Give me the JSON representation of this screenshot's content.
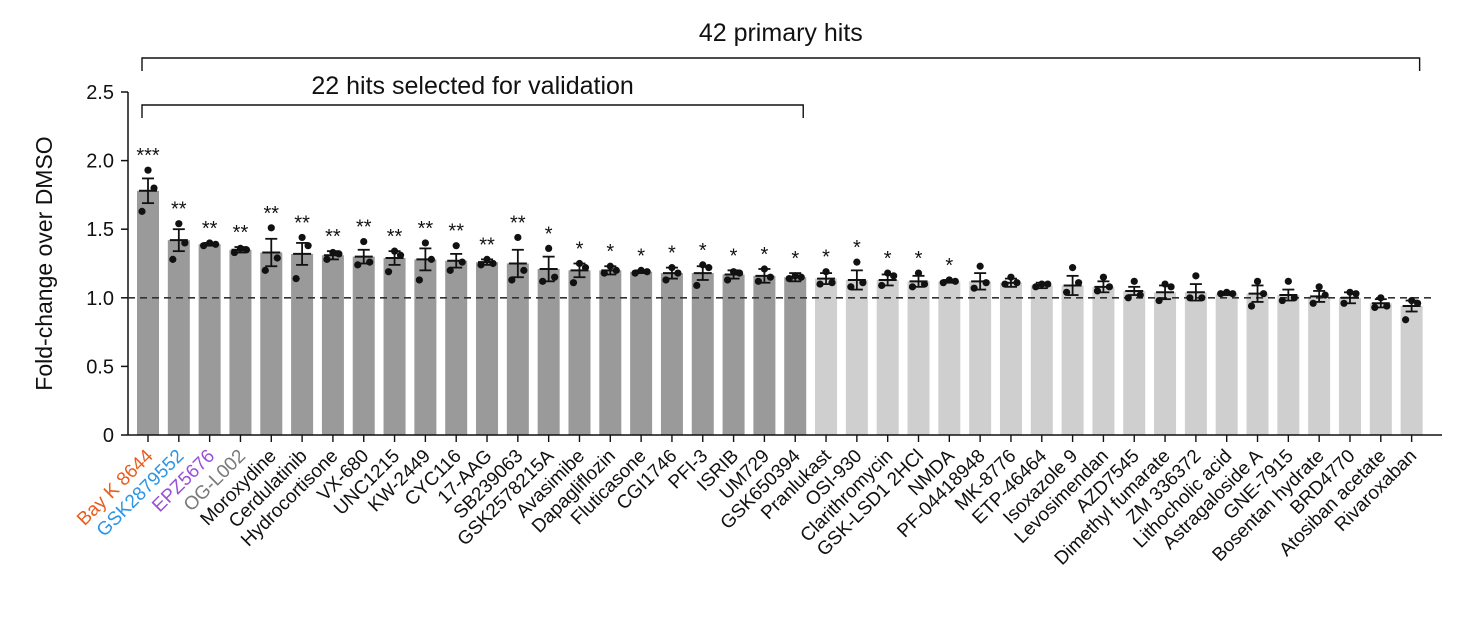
{
  "chart_data": {
    "type": "bar",
    "ylabel": "Fold-change over DMSO",
    "xlabel": "",
    "ylim": [
      0,
      2.5
    ],
    "yticks": [
      0,
      0.5,
      1.0,
      1.5,
      2.0,
      2.5
    ],
    "ytick_labels": [
      "0",
      "0.5",
      "1.0",
      "1.5",
      "2.0",
      "2.5"
    ],
    "reference_line": 1.0,
    "categories": [
      "Bay K 8644",
      "GSK2879552",
      "EPZ5676",
      "OG-L002",
      "Moroxydine",
      "Cerdulatinib",
      "Hydrocortisone",
      "VX-680",
      "UNC1215",
      "KW-2449",
      "CYC116",
      "17-AAG",
      "SB239063",
      "GSK2578215A",
      "Avasimibe",
      "Dapagliflozin",
      "Fluticasone",
      "CGI1746",
      "PFI-3",
      "ISRIB",
      "UM729",
      "GSK650394",
      "Pranlukast",
      "OSI-930",
      "Clarithromycin",
      "GSK-LSD1 2HCl",
      "NMDA",
      "PF-04418948",
      "MK-8776",
      "ETP-46464",
      "Isoxazole 9",
      "Levosimendan",
      "AZD7545",
      "Dimethyl fumarate",
      "ZM 336372",
      "Lithocholic acid",
      "Astragaloside A",
      "GNE-7915",
      "Bosentan hydrate",
      "BRD4770",
      "Atosiban acetate",
      "Rivaroxaban"
    ],
    "values": [
      1.78,
      1.42,
      1.39,
      1.35,
      1.33,
      1.32,
      1.31,
      1.3,
      1.29,
      1.28,
      1.27,
      1.26,
      1.25,
      1.21,
      1.2,
      1.2,
      1.19,
      1.18,
      1.18,
      1.17,
      1.16,
      1.15,
      1.14,
      1.13,
      1.13,
      1.12,
      1.12,
      1.12,
      1.11,
      1.09,
      1.09,
      1.08,
      1.05,
      1.04,
      1.04,
      1.03,
      1.03,
      1.02,
      1.01,
      1.0,
      0.96,
      0.94
    ],
    "errors": [
      0.09,
      0.08,
      0.01,
      0.02,
      0.1,
      0.08,
      0.03,
      0.05,
      0.05,
      0.08,
      0.05,
      0.02,
      0.1,
      0.09,
      0.05,
      0.03,
      0.01,
      0.04,
      0.05,
      0.03,
      0.05,
      0.03,
      0.04,
      0.07,
      0.04,
      0.04,
      0.01,
      0.06,
      0.03,
      0.02,
      0.07,
      0.04,
      0.03,
      0.05,
      0.06,
      0.01,
      0.06,
      0.04,
      0.04,
      0.04,
      0.03,
      0.04
    ],
    "points": [
      [
        1.93,
        1.8,
        1.63
      ],
      [
        1.54,
        1.4,
        1.28
      ],
      [
        1.4,
        1.39,
        1.38
      ],
      [
        1.36,
        1.35,
        1.33
      ],
      [
        1.51,
        1.29,
        1.2
      ],
      [
        1.44,
        1.38,
        1.14
      ],
      [
        1.33,
        1.32,
        1.28
      ],
      [
        1.41,
        1.26,
        1.24
      ],
      [
        1.34,
        1.31,
        1.19
      ],
      [
        1.4,
        1.28,
        1.13
      ],
      [
        1.38,
        1.26,
        1.2
      ],
      [
        1.28,
        1.25,
        1.24
      ],
      [
        1.44,
        1.2,
        1.13
      ],
      [
        1.36,
        1.15,
        1.12
      ],
      [
        1.25,
        1.22,
        1.11
      ],
      [
        1.23,
        1.2,
        1.18
      ],
      [
        1.2,
        1.19,
        1.18
      ],
      [
        1.22,
        1.18,
        1.13
      ],
      [
        1.24,
        1.22,
        1.09
      ],
      [
        1.19,
        1.18,
        1.13
      ],
      [
        1.21,
        1.15,
        1.12
      ],
      [
        1.16,
        1.15,
        1.14
      ],
      [
        1.19,
        1.11,
        1.1
      ],
      [
        1.26,
        1.11,
        1.08
      ],
      [
        1.18,
        1.16,
        1.09
      ],
      [
        1.18,
        1.1,
        1.08
      ],
      [
        1.13,
        1.12,
        1.11
      ],
      [
        1.23,
        1.11,
        1.07
      ],
      [
        1.15,
        1.11,
        1.1
      ],
      [
        1.1,
        1.1,
        1.08
      ],
      [
        1.22,
        1.11,
        1.04
      ],
      [
        1.15,
        1.08,
        1.05
      ],
      [
        1.12,
        1.02,
        1.0
      ],
      [
        1.1,
        1.08,
        0.98
      ],
      [
        1.16,
        1.0,
        1.0
      ],
      [
        1.04,
        1.03,
        1.03
      ],
      [
        1.12,
        1.03,
        0.94
      ],
      [
        1.12,
        1.0,
        0.98
      ],
      [
        1.08,
        1.02,
        0.96
      ],
      [
        1.04,
        1.03,
        0.96
      ],
      [
        1.0,
        0.94,
        0.93
      ],
      [
        0.98,
        0.96,
        0.84
      ]
    ],
    "significance": [
      "***",
      "**",
      "**",
      "**",
      "**",
      "**",
      "**",
      "**",
      "**",
      "**",
      "**",
      "**",
      "**",
      "*",
      "*",
      "*",
      "*",
      "*",
      "*",
      "*",
      "*",
      "*",
      "*",
      "*",
      "*",
      "*",
      "*",
      "",
      "",
      "",
      "",
      "",
      "",
      "",
      "",
      "",
      "",
      "",
      "",
      "",
      "",
      ""
    ],
    "highlight_labels": {
      "Bay K 8644": "#e85d1f",
      "GSK2879552": "#2b95e6",
      "EPZ5676": "#9b4fd6",
      "OG-L002": "#7a7a7a"
    },
    "series_colors": {
      "selected": "#9a9a9a",
      "not_selected": "#cfcfcf",
      "label_default": "#111111"
    },
    "selected_count": 22,
    "brackets": [
      {
        "label": "42 primary hits",
        "from": "Bay K 8644",
        "to": "Rivaroxaban"
      },
      {
        "label": "22 hits selected for validation",
        "from": "Bay K 8644",
        "to": "GSK650394"
      }
    ]
  }
}
